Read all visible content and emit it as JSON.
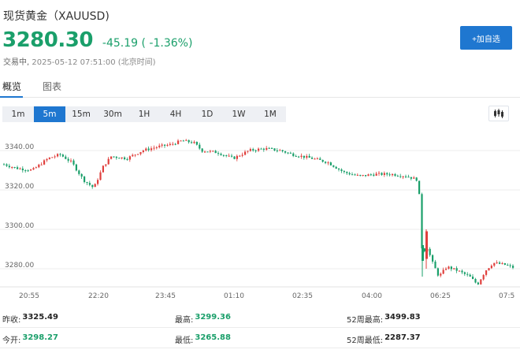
{
  "header": {
    "title": "现货黄金（XAUUSD)",
    "price": "3280.30",
    "change": "-45.19 ( -1.36%)",
    "status": "交易中",
    "timestamp": "2025-05-12 07:51:00",
    "timezone": "(北京时间)",
    "add_button": "+加自选"
  },
  "tabs": [
    {
      "label": "概览",
      "active": true
    },
    {
      "label": "图表",
      "active": false
    }
  ],
  "intervals": [
    {
      "label": "1m",
      "active": false
    },
    {
      "label": "5m",
      "active": true
    },
    {
      "label": "15m",
      "active": false
    },
    {
      "label": "30m",
      "active": false
    },
    {
      "label": "1H",
      "active": false
    },
    {
      "label": "4H",
      "active": false
    },
    {
      "label": "1D",
      "active": false
    },
    {
      "label": "1W",
      "active": false
    },
    {
      "label": "1M",
      "active": false
    }
  ],
  "chart_type_icon": "candlestick-icon",
  "colors": {
    "up": "#e0403d",
    "down": "#1a9f6a",
    "accent": "#1f77d0"
  },
  "chart_data": {
    "type": "candlestick",
    "y_ticks": [
      "3340.00",
      "3320.00",
      "3300.00",
      "3280.00"
    ],
    "y_tick_values": [
      3340,
      3320,
      3300,
      3280
    ],
    "x_ticks": [
      "20:55",
      "22:20",
      "23:45",
      "01:10",
      "02:35",
      "04:00",
      "06:25",
      "07:5"
    ],
    "ylim": [
      3266,
      3352
    ],
    "grid": true
  },
  "stats": [
    [
      {
        "label": "昨收:",
        "value": "3325.49",
        "up": false
      },
      {
        "label": "最高:",
        "value": "3299.36",
        "up": true
      },
      {
        "label": "52周最高:",
        "value": "3499.83",
        "up": false
      }
    ],
    [
      {
        "label": "今开:",
        "value": "3298.27",
        "up": true
      },
      {
        "label": "最低:",
        "value": "3265.88",
        "up": true
      },
      {
        "label": "52周最低:",
        "value": "2287.37",
        "up": false
      }
    ]
  ]
}
